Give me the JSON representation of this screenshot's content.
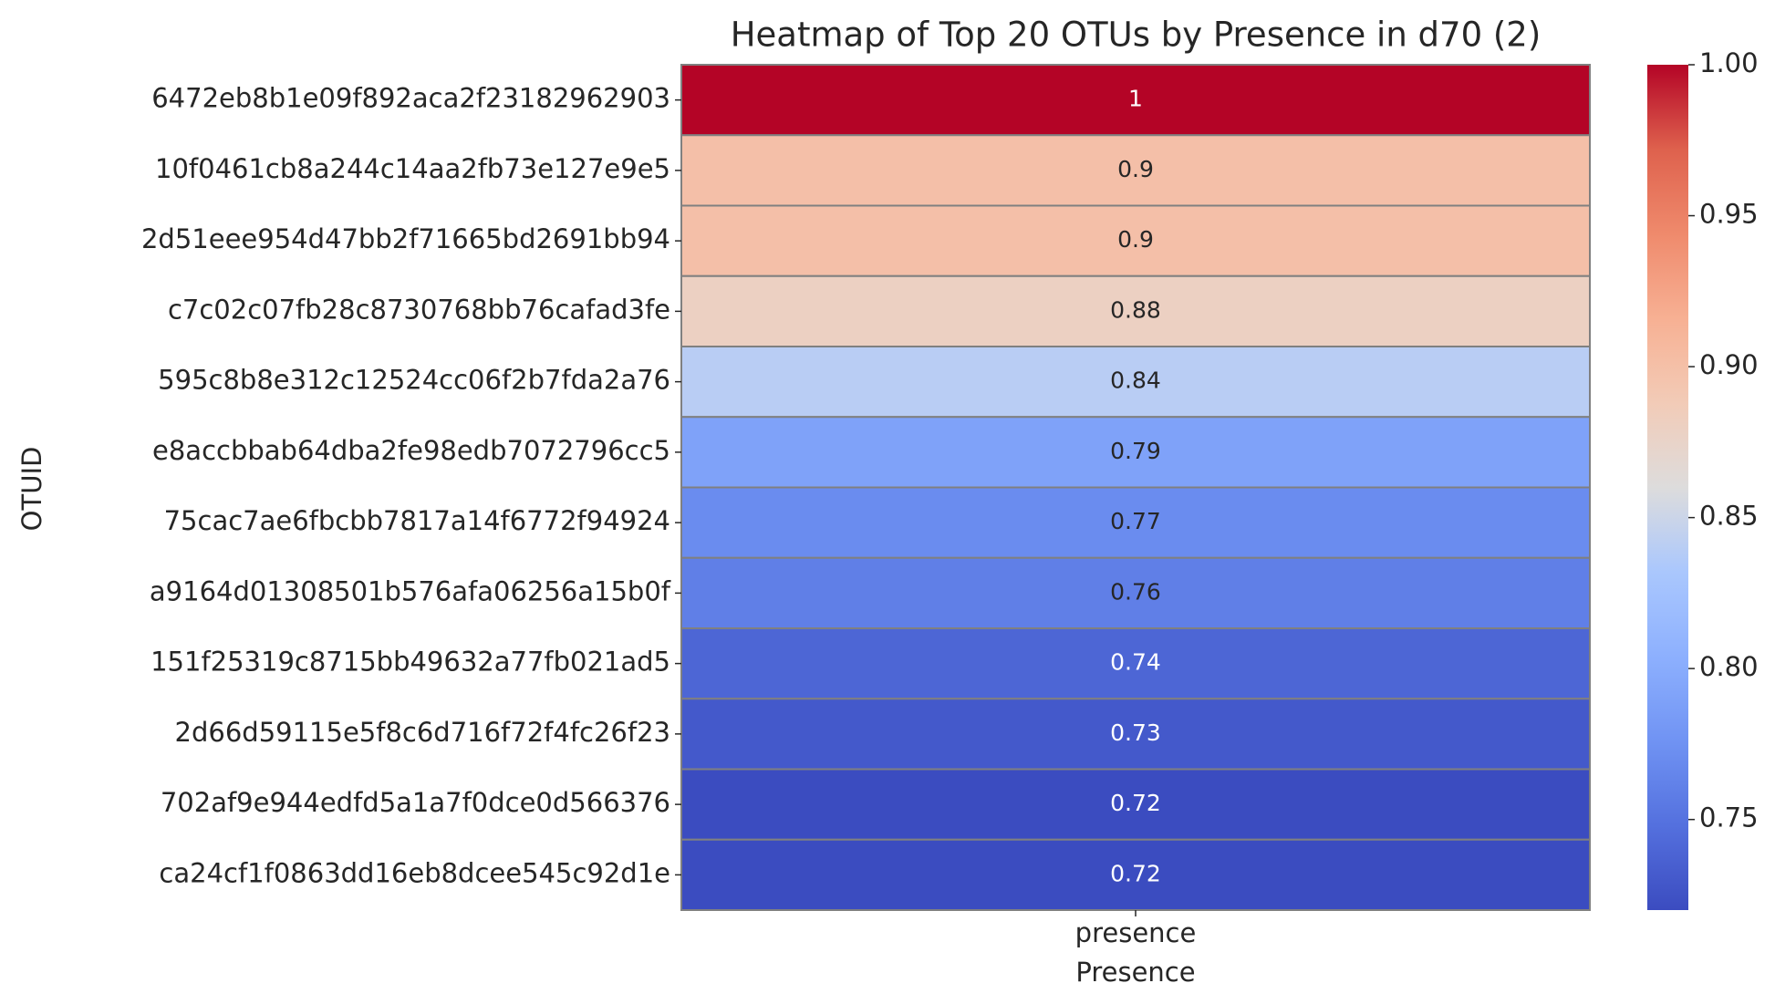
{
  "chart_data": {
    "type": "heatmap",
    "title": "Heatmap of Top 20 OTUs by Presence in d70 (2)",
    "x_label": "Presence",
    "y_label": "OTUID",
    "columns": [
      "presence"
    ],
    "categories": [
      "6472eb8b1e09f892aca2f23182962903",
      "10f0461cb8a244c14aa2fb73e127e9e5",
      "2d51eee954d47bb2f71665bd2691bb94",
      "c7c02c07fb28c8730768bb76cafad3fe",
      "595c8b8e312c12524cc06f2b7fda2a76",
      "e8accbbab64dba2fe98edb7072796cc5",
      "75cac7ae6fbcbb7817a14f6772f94924",
      "a9164d01308501b576afa06256a15b0f",
      "151f25319c8715bb49632a77fb021ad5",
      "2d66d59115e5f8c6d716f72f4fc26f23",
      "702af9e944edfd5a1a7f0dce0d566376",
      "ca24cf1f0863dd16eb8dcee545c92d1e"
    ],
    "values": [
      1,
      0.9,
      0.9,
      0.88,
      0.84,
      0.79,
      0.77,
      0.76,
      0.74,
      0.73,
      0.72,
      0.72
    ],
    "zlim": [
      0.72,
      1.0
    ],
    "zticks": [
      0.75,
      {
        "value": 0.8,
        "label": "0.80"
      },
      0.85,
      {
        "value": 0.9,
        "label": "0.90"
      },
      0.95,
      {
        "value": 1.0,
        "label": "1.00"
      }
    ],
    "colormap": [
      "#3b4cc0",
      "#5470de",
      "#7093f3",
      "#8db0fe",
      "#aac7fd",
      "#dddcdc",
      "#f2cbb7",
      "#f7b093",
      "#ef8a6c",
      "#de614d",
      "#b40426"
    ]
  }
}
